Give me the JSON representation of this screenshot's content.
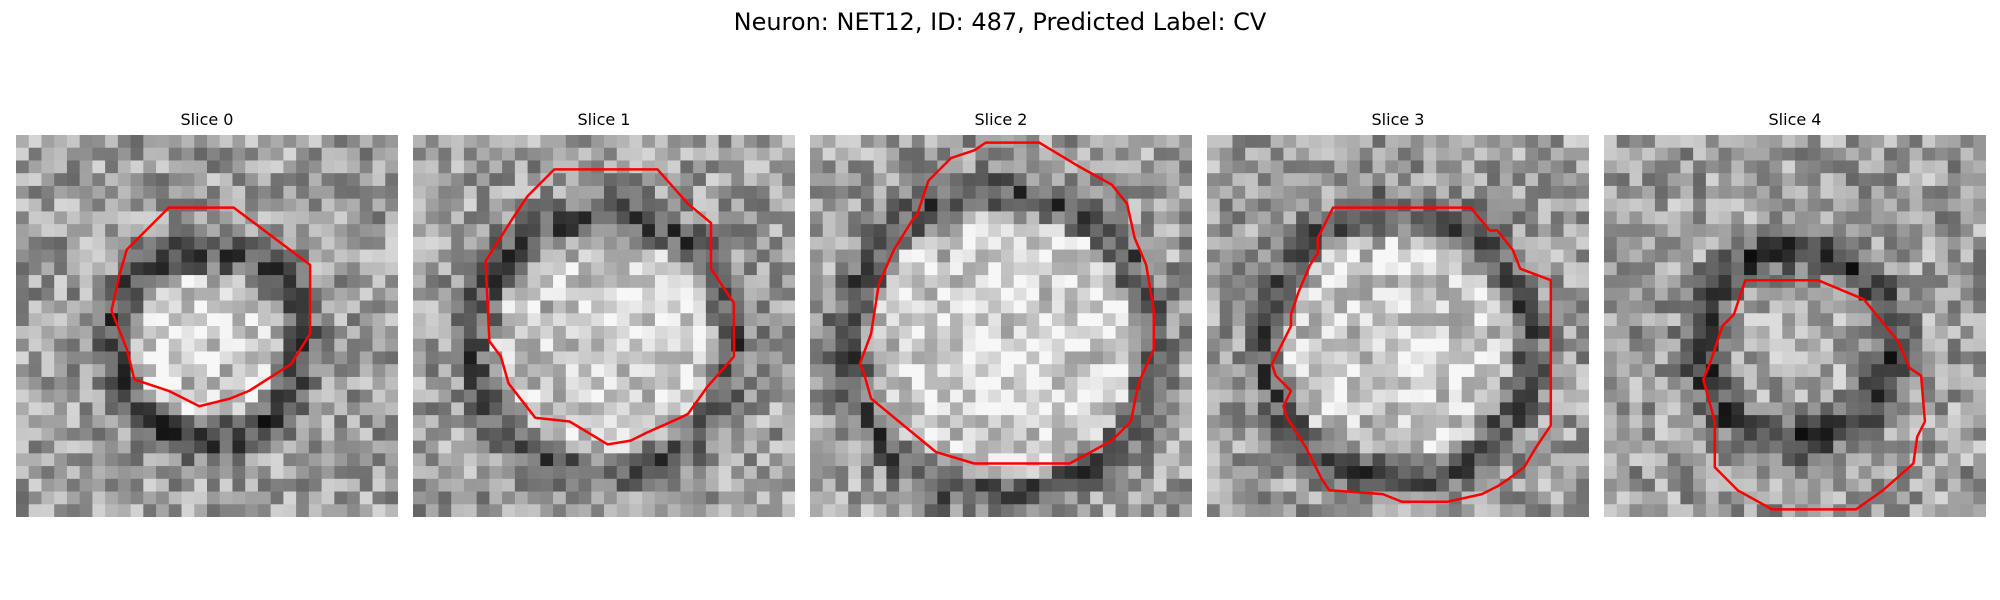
{
  "figure": {
    "title": "Neuron: NET12, ID: 487, Predicted Label: CV"
  },
  "panels": [
    {
      "title": "Slice 0",
      "ring_radius": 0.25,
      "ring_dark": 0.35,
      "center_bright": 0.25,
      "contour": [
        [
          0.4,
          0.19
        ],
        [
          0.57,
          0.19
        ],
        [
          0.77,
          0.34
        ],
        [
          0.77,
          0.52
        ],
        [
          0.72,
          0.6
        ],
        [
          0.61,
          0.67
        ],
        [
          0.56,
          0.69
        ],
        [
          0.48,
          0.71
        ],
        [
          0.4,
          0.67
        ],
        [
          0.31,
          0.64
        ],
        [
          0.29,
          0.56
        ],
        [
          0.25,
          0.46
        ],
        [
          0.27,
          0.37
        ],
        [
          0.29,
          0.3
        ]
      ]
    },
    {
      "title": "Slice 1",
      "ring_radius": 0.34,
      "ring_dark": 0.3,
      "center_bright": 0.22,
      "contour": [
        [
          0.37,
          0.09
        ],
        [
          0.64,
          0.09
        ],
        [
          0.72,
          0.18
        ],
        [
          0.78,
          0.23
        ],
        [
          0.78,
          0.35
        ],
        [
          0.84,
          0.44
        ],
        [
          0.84,
          0.58
        ],
        [
          0.77,
          0.66
        ],
        [
          0.72,
          0.73
        ],
        [
          0.7,
          0.74
        ],
        [
          0.61,
          0.78
        ],
        [
          0.57,
          0.8
        ],
        [
          0.51,
          0.81
        ],
        [
          0.41,
          0.75
        ],
        [
          0.32,
          0.74
        ],
        [
          0.25,
          0.65
        ],
        [
          0.23,
          0.58
        ],
        [
          0.2,
          0.54
        ],
        [
          0.19,
          0.33
        ],
        [
          0.26,
          0.22
        ],
        [
          0.3,
          0.16
        ]
      ]
    },
    {
      "title": "Slice 2",
      "ring_radius": 0.4,
      "ring_dark": 0.3,
      "center_bright": 0.25,
      "contour": [
        [
          0.37,
          0.06
        ],
        [
          0.43,
          0.04
        ],
        [
          0.46,
          0.02
        ],
        [
          0.6,
          0.02
        ],
        [
          0.7,
          0.08
        ],
        [
          0.79,
          0.13
        ],
        [
          0.83,
          0.18
        ],
        [
          0.85,
          0.27
        ],
        [
          0.88,
          0.34
        ],
        [
          0.9,
          0.46
        ],
        [
          0.9,
          0.56
        ],
        [
          0.86,
          0.65
        ],
        [
          0.84,
          0.75
        ],
        [
          0.79,
          0.8
        ],
        [
          0.68,
          0.86
        ],
        [
          0.43,
          0.86
        ],
        [
          0.33,
          0.83
        ],
        [
          0.16,
          0.69
        ],
        [
          0.14,
          0.62
        ],
        [
          0.13,
          0.6
        ],
        [
          0.16,
          0.52
        ],
        [
          0.18,
          0.39
        ],
        [
          0.22,
          0.3
        ],
        [
          0.27,
          0.22
        ],
        [
          0.28,
          0.21
        ],
        [
          0.31,
          0.12
        ]
      ]
    },
    {
      "title": "Slice 3",
      "ring_radius": 0.35,
      "ring_dark": 0.3,
      "center_bright": 0.22,
      "contour": [
        [
          0.33,
          0.19
        ],
        [
          0.69,
          0.19
        ],
        [
          0.74,
          0.25
        ],
        [
          0.76,
          0.25
        ],
        [
          0.8,
          0.3
        ],
        [
          0.82,
          0.35
        ],
        [
          0.9,
          0.38
        ],
        [
          0.9,
          0.76
        ],
        [
          0.86,
          0.82
        ],
        [
          0.83,
          0.87
        ],
        [
          0.79,
          0.9
        ],
        [
          0.76,
          0.92
        ],
        [
          0.72,
          0.94
        ],
        [
          0.63,
          0.96
        ],
        [
          0.51,
          0.96
        ],
        [
          0.46,
          0.94
        ],
        [
          0.32,
          0.93
        ],
        [
          0.3,
          0.9
        ],
        [
          0.26,
          0.82
        ],
        [
          0.21,
          0.74
        ],
        [
          0.2,
          0.71
        ],
        [
          0.22,
          0.67
        ],
        [
          0.18,
          0.63
        ],
        [
          0.17,
          0.6
        ],
        [
          0.22,
          0.5
        ],
        [
          0.22,
          0.47
        ],
        [
          0.24,
          0.41
        ],
        [
          0.27,
          0.34
        ],
        [
          0.29,
          0.31
        ],
        [
          0.29,
          0.27
        ]
      ]
    },
    {
      "title": "Slice 4",
      "ring_radius": 0.25,
      "ring_dark": 0.4,
      "center_bright": 0.05,
      "contour": [
        [
          0.37,
          0.38
        ],
        [
          0.56,
          0.38
        ],
        [
          0.68,
          0.43
        ],
        [
          0.77,
          0.54
        ],
        [
          0.8,
          0.61
        ],
        [
          0.83,
          0.63
        ],
        [
          0.84,
          0.75
        ],
        [
          0.82,
          0.79
        ],
        [
          0.81,
          0.86
        ],
        [
          0.73,
          0.93
        ],
        [
          0.66,
          0.98
        ],
        [
          0.44,
          0.98
        ],
        [
          0.35,
          0.93
        ],
        [
          0.29,
          0.87
        ],
        [
          0.29,
          0.75
        ],
        [
          0.26,
          0.64
        ],
        [
          0.28,
          0.59
        ],
        [
          0.31,
          0.5
        ],
        [
          0.34,
          0.47
        ]
      ]
    }
  ]
}
